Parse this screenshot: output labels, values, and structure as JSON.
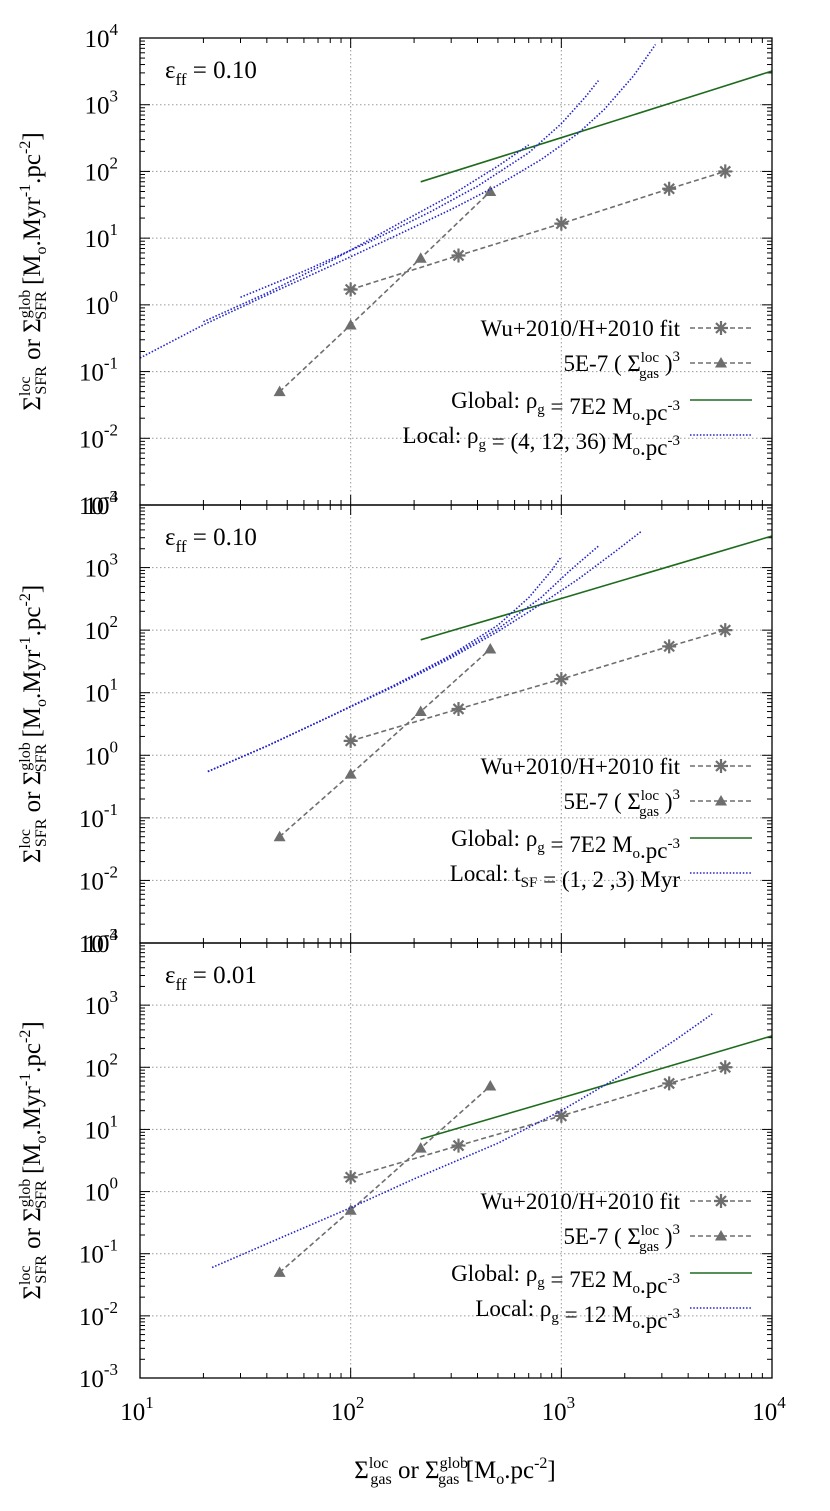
{
  "chart_data": [
    {
      "type": "line",
      "annotation": {
        "base": "ε",
        "sub": "ff",
        "text": " =  0.10"
      },
      "xlim": [
        10,
        10000
      ],
      "ylim": [
        0.001,
        10000
      ],
      "xscale": "log",
      "yscale": "log",
      "grid": true,
      "legend_position": "bottom-right",
      "series": [
        {
          "name": "Wu+2010/H+2010 fit",
          "style": "gray-star-dashed",
          "color": "#6e6e6e",
          "x": [
            100,
            325,
            1000,
            3250,
            6000
          ],
          "y": [
            1.7,
            5.5,
            16.5,
            55,
            100
          ]
        },
        {
          "name": "5E-7 ( Σgas loc )3",
          "style": "gray-triangle-dashed",
          "color": "#6e6e6e",
          "x": [
            46,
            100,
            215,
            460
          ],
          "y": [
            0.05,
            0.5,
            5,
            50
          ]
        },
        {
          "name": "Global: ρg = 7E2 Mo.pc-3",
          "style": "green-solid",
          "color": "#1e6b1e",
          "x": [
            215,
            1000,
            5000,
            10000
          ],
          "y": [
            70,
            320,
            1600,
            3200
          ]
        },
        {
          "name": "Local: ρg = (4, 12, 36) Mo.pc-3",
          "style": "blue-dotted",
          "color": "#2222cc",
          "curves": [
            {
              "x": [
                10,
                20,
                40,
                80,
                160,
                300,
                500,
                800,
                1200,
                1600,
                2200,
                2800
              ],
              "y": [
                0.16,
                0.5,
                1.4,
                3.8,
                10.5,
                27,
                62,
                150,
                370,
                850,
                2700,
                8000
              ]
            },
            {
              "x": [
                30,
                60,
                120,
                240,
                400,
                700,
                1000,
                1300,
                1500
              ],
              "y": [
                1.3,
                3.2,
                8.5,
                25,
                60,
                190,
                520,
                1300,
                2300
              ]
            },
            {
              "x": [
                20,
                40,
                80,
                160,
                300,
                500,
                700
              ],
              "y": [
                0.56,
                1.5,
                4.5,
                15,
                44,
                120,
                250
              ]
            }
          ]
        }
      ],
      "legend": [
        {
          "base": "Wu+2010/H+2010 fit"
        },
        {
          "base": "5E-7 ( Σ",
          "sub": "gas",
          "sup": "loc",
          "after": ")",
          "after_sup": "3"
        },
        {
          "base": "Global: ρ",
          "sub": "g",
          "after": " =  7E2 M",
          "sub2": "o",
          "after2": ".pc",
          "after_sup": "-3"
        },
        {
          "base": "Local: ρ",
          "sub": "g",
          "after": " = (4, 12, 36) M",
          "sub2": "o",
          "after2": ".pc",
          "after_sup": "-3"
        }
      ]
    },
    {
      "type": "line",
      "annotation": {
        "base": "ε",
        "sub": "ff",
        "text": " =  0.10"
      },
      "xlim": [
        10,
        10000
      ],
      "ylim": [
        0.001,
        10000
      ],
      "xscale": "log",
      "yscale": "log",
      "grid": true,
      "legend_position": "bottom-right",
      "series": [
        {
          "name": "Wu+2010/H+2010 fit",
          "style": "gray-star-dashed",
          "color": "#6e6e6e",
          "x": [
            100,
            325,
            1000,
            3250,
            6000
          ],
          "y": [
            1.7,
            5.5,
            16.5,
            55,
            100
          ]
        },
        {
          "name": "5E-7 ( Σgas loc )3",
          "style": "gray-triangle-dashed",
          "color": "#6e6e6e",
          "x": [
            46,
            100,
            215,
            460
          ],
          "y": [
            0.05,
            0.5,
            5,
            50
          ]
        },
        {
          "name": "Global: ρg = 7E2 Mo.pc-3",
          "style": "green-solid",
          "color": "#1e6b1e",
          "x": [
            215,
            1000,
            5000,
            10000
          ],
          "y": [
            70,
            320,
            1600,
            3200
          ]
        },
        {
          "name": "Local: tSF = (1, 2 ,3) Myr",
          "style": "blue-dotted",
          "color": "#2222cc",
          "curves": [
            {
              "x": [
                21,
                40,
                80,
                160,
                300,
                500,
                700,
                900,
                1000
              ],
              "y": [
                0.55,
                1.4,
                4.2,
                13,
                40,
                120,
                330,
                900,
                1500
              ]
            },
            {
              "x": [
                21,
                40,
                80,
                160,
                300,
                500,
                800,
                1100,
                1500
              ],
              "y": [
                0.55,
                1.4,
                4.2,
                13,
                38,
                105,
                330,
                900,
                2200
              ]
            },
            {
              "x": [
                21,
                40,
                80,
                160,
                300,
                500,
                800,
                1200,
                1800,
                2400
              ],
              "y": [
                0.55,
                1.4,
                4.2,
                12.5,
                36,
                95,
                260,
                650,
                1800,
                3800
              ]
            }
          ]
        }
      ],
      "legend": [
        {
          "base": "Wu+2010/H+2010 fit"
        },
        {
          "base": "5E-7 ( Σ",
          "sub": "gas",
          "sup": "loc",
          "after": ")",
          "after_sup": "3"
        },
        {
          "base": "Global: ρ",
          "sub": "g",
          "after": " =  7E2 M",
          "sub2": "o",
          "after2": ".pc",
          "after_sup": "-3"
        },
        {
          "base": "Local: t",
          "sub": "SF",
          "after": " = (1, 2 ,3) Myr"
        }
      ]
    },
    {
      "type": "line",
      "annotation": {
        "base": "ε",
        "sub": "ff",
        "text": " =  0.01"
      },
      "xlim": [
        10,
        10000
      ],
      "ylim": [
        0.001,
        10000
      ],
      "xscale": "log",
      "yscale": "log",
      "grid": true,
      "legend_position": "bottom-right",
      "series": [
        {
          "name": "Wu+2010/H+2010 fit",
          "style": "gray-star-dashed",
          "color": "#6e6e6e",
          "x": [
            100,
            325,
            1000,
            3250,
            6000
          ],
          "y": [
            1.7,
            5.5,
            16.5,
            55,
            100
          ]
        },
        {
          "name": "5E-7 ( Σgas loc )3",
          "style": "gray-triangle-dashed",
          "color": "#6e6e6e",
          "x": [
            46,
            100,
            215,
            460
          ],
          "y": [
            0.05,
            0.5,
            5,
            50
          ]
        },
        {
          "name": "Global: ρg = 7E2 Mo.pc-3",
          "style": "green-solid",
          "color": "#1e6b1e",
          "x": [
            215,
            1000,
            5000,
            10000
          ],
          "y": [
            7,
            32,
            160,
            320
          ]
        },
        {
          "name": "Local: ρg = 12 Mo.pc-3",
          "style": "blue-dotted",
          "color": "#2222cc",
          "curves": [
            {
              "x": [
                22,
                50,
                100,
                200,
                500,
                1000,
                2000,
                3500,
                5200
              ],
              "y": [
                0.06,
                0.2,
                0.55,
                1.6,
                6,
                20,
                80,
                280,
                720
              ]
            }
          ]
        }
      ],
      "legend": [
        {
          "base": "Wu+2010/H+2010 fit"
        },
        {
          "base": "5E-7 ( Σ",
          "sub": "gas",
          "sup": "loc",
          "after": ")",
          "after_sup": "3"
        },
        {
          "base": "Global: ρ",
          "sub": "g",
          "after": " =  7E2 M",
          "sub2": "o",
          "after2": ".pc",
          "after_sup": "-3"
        },
        {
          "base": "Local: ρ",
          "sub": "g",
          "after": " = 12 M",
          "sub2": "o",
          "after2": ".pc",
          "after_sup": "-3"
        }
      ]
    }
  ],
  "axes": {
    "x_ticks": [
      {
        "base": "10",
        "exp": "1",
        "value": 10
      },
      {
        "base": "10",
        "exp": "2",
        "value": 100
      },
      {
        "base": "10",
        "exp": "3",
        "value": 1000
      },
      {
        "base": "10",
        "exp": "4",
        "value": 10000
      }
    ],
    "y_ticks": [
      {
        "base": "10",
        "exp": "-3",
        "value": 0.001
      },
      {
        "base": "10",
        "exp": "-2",
        "value": 0.01
      },
      {
        "base": "10",
        "exp": "-1",
        "value": 0.1
      },
      {
        "base": "10",
        "exp": "0",
        "value": 1
      },
      {
        "base": "10",
        "exp": "1",
        "value": 10
      },
      {
        "base": "10",
        "exp": "2",
        "value": 100
      },
      {
        "base": "10",
        "exp": "3",
        "value": 1000
      },
      {
        "base": "10",
        "exp": "4",
        "value": 10000
      }
    ],
    "xlabel": {
      "s1": "Σ",
      "s1_sub": "gas",
      "s1_sup": "loc",
      "mid": " or Σ",
      "s2_sub": "gas",
      "s2_sup": "glob",
      "end": " [M",
      "end_sub": "o",
      "end2": ".pc",
      "end_sup": "-2",
      "close": "]"
    },
    "ylabel": {
      "s1": "Σ",
      "s1_sub": "SFR",
      "s1_sup": "loc",
      "mid": " or Σ",
      "s2_sub": "SFR",
      "s2_sup": "glob",
      "end": " [M",
      "end_sub": "o",
      "end2": ".Myr",
      "end_sup": "-1",
      "end3": ".pc",
      "end_sup2": "-2",
      "close": "]"
    }
  }
}
